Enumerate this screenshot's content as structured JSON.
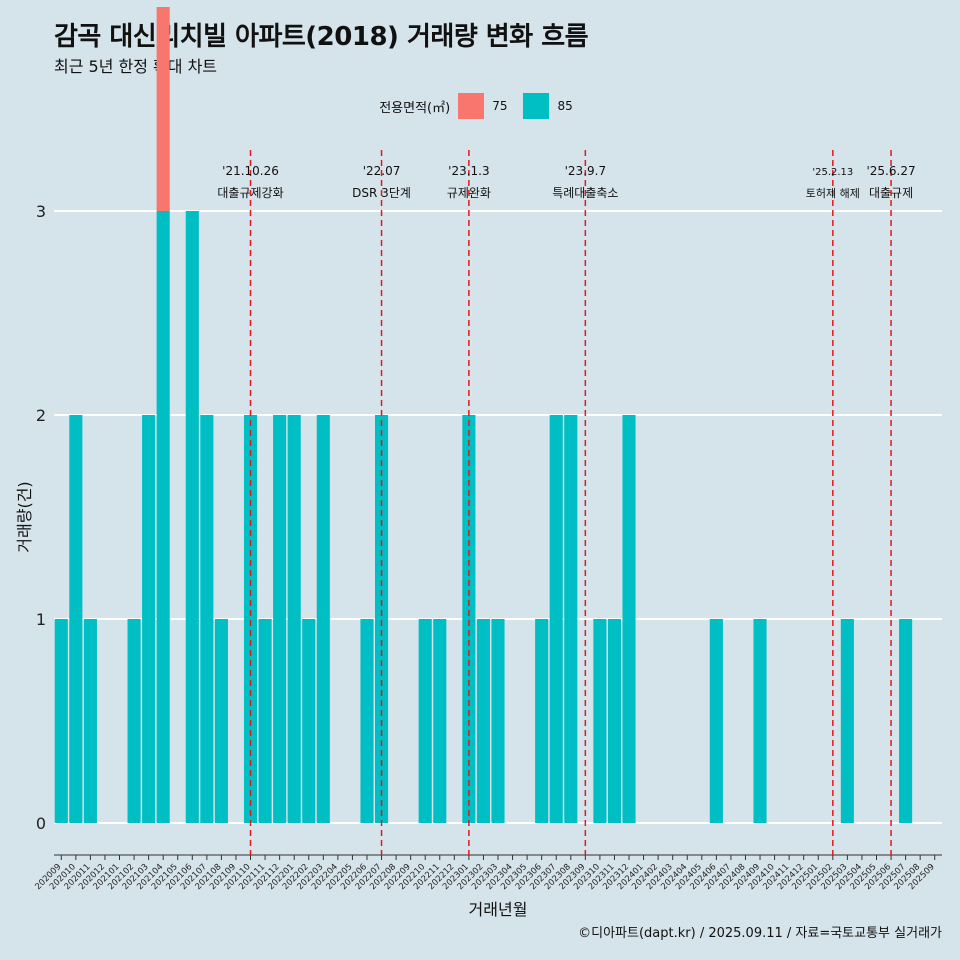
{
  "title": "감곡 대신리치빌 아파트(2018) 거래량 변화 흐름",
  "subtitle": "최근 5년 한정 확대 차트",
  "caption": "©디아파트(dapt.kr) / 2025.09.11 / 자료=국토교통부 실거래가",
  "colors": {
    "background": "#d5e3ea",
    "s75": "#f8766d",
    "s85": "#00bfc4",
    "event": "#e8151b"
  },
  "chart_data": {
    "type": "bar",
    "title": "감곡 대신리치빌 아파트(2018) 거래량 변화 흐름",
    "xlabel": "거래년월",
    "ylabel": "거래량(건)",
    "ylim": [
      0,
      3
    ],
    "yticks": [
      0,
      1,
      2,
      3
    ],
    "legend_title": "전용면적(㎡)",
    "legend_position": "top",
    "categories": [
      "202009",
      "202010",
      "202011",
      "202012",
      "202101",
      "202102",
      "202103",
      "202104",
      "202105",
      "202106",
      "202107",
      "202108",
      "202109",
      "202110",
      "202111",
      "202112",
      "202201",
      "202202",
      "202203",
      "202204",
      "202205",
      "202206",
      "202207",
      "202208",
      "202209",
      "202210",
      "202211",
      "202212",
      "202301",
      "202302",
      "202303",
      "202304",
      "202305",
      "202306",
      "202307",
      "202308",
      "202309",
      "202310",
      "202311",
      "202312",
      "202401",
      "202402",
      "202403",
      "202404",
      "202405",
      "202406",
      "202407",
      "202408",
      "202409",
      "202410",
      "202411",
      "202412",
      "202501",
      "202502",
      "202503",
      "202504",
      "202505",
      "202506",
      "202507",
      "202508",
      "202509"
    ],
    "series": [
      {
        "name": "75",
        "values": [
          0,
          0,
          0,
          0,
          0,
          0,
          0,
          1,
          0,
          0,
          0,
          0,
          0,
          0,
          0,
          0,
          0,
          0,
          0,
          0,
          0,
          0,
          0,
          0,
          0,
          0,
          0,
          0,
          0,
          0,
          0,
          0,
          0,
          0,
          0,
          0,
          0,
          0,
          0,
          0,
          0,
          0,
          0,
          0,
          0,
          0,
          0,
          0,
          0,
          0,
          0,
          0,
          0,
          0,
          0,
          0,
          0,
          0,
          0,
          0,
          0
        ]
      },
      {
        "name": "85",
        "values": [
          1,
          2,
          1,
          0,
          0,
          1,
          2,
          3,
          0,
          3,
          2,
          1,
          0,
          2,
          1,
          2,
          2,
          1,
          2,
          0,
          0,
          1,
          2,
          0,
          0,
          1,
          1,
          0,
          2,
          1,
          1,
          0,
          0,
          1,
          2,
          2,
          0,
          1,
          1,
          2,
          0,
          0,
          0,
          0,
          0,
          1,
          0,
          0,
          1,
          0,
          0,
          0,
          0,
          0,
          1,
          0,
          0,
          0,
          1,
          0,
          0
        ]
      }
    ],
    "events": [
      {
        "date": "'21.10.26",
        "label": "대출규제강화",
        "category": "202110"
      },
      {
        "date": "'22.07",
        "label": "DSR 3단계",
        "category": "202207"
      },
      {
        "date": "'23.1.3",
        "label": "규제완화",
        "category": "202301"
      },
      {
        "date": "'23.9.7",
        "label": "특례대출축소",
        "category": "202309"
      },
      {
        "date": "'25.2.13",
        "label": "토허제 해제",
        "category": "202502"
      },
      {
        "date": "'25.6.27",
        "label": "대출규제",
        "category": "202506"
      }
    ],
    "grid": true
  }
}
